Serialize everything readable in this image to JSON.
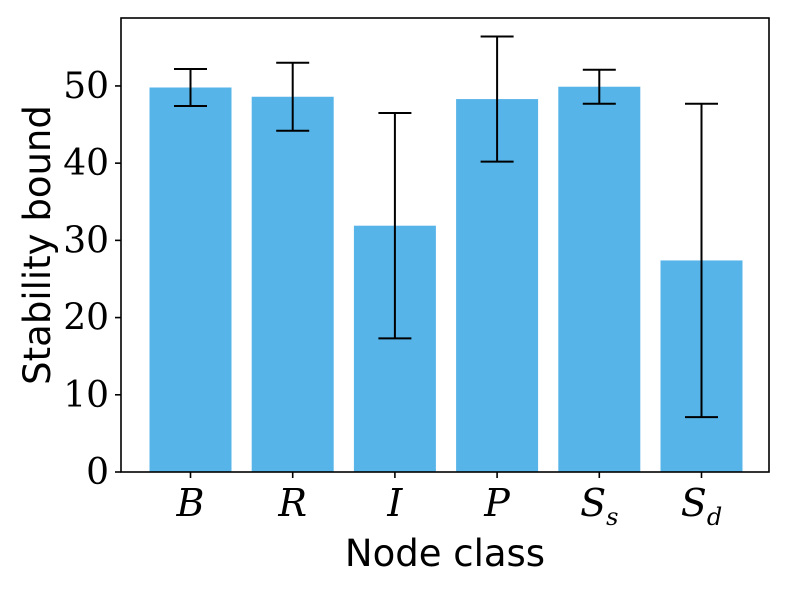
{
  "chart_data": {
    "type": "bar",
    "title": "",
    "xlabel": "Node class",
    "ylabel": "Stability bound",
    "categories": [
      {
        "base": "B",
        "sub": ""
      },
      {
        "base": "R",
        "sub": ""
      },
      {
        "base": "I",
        "sub": ""
      },
      {
        "base": "P",
        "sub": ""
      },
      {
        "base": "S",
        "sub": "s"
      },
      {
        "base": "S",
        "sub": "d"
      }
    ],
    "values": [
      49.8,
      48.6,
      31.9,
      48.3,
      49.9,
      27.4
    ],
    "error_low": [
      47.4,
      44.2,
      17.3,
      40.2,
      47.7,
      7.1
    ],
    "error_high": [
      52.2,
      53.0,
      46.5,
      56.4,
      52.1,
      47.7
    ],
    "ylim": [
      0,
      58.8
    ],
    "yticks": [
      0,
      10,
      20,
      30,
      40,
      50
    ],
    "grid": false,
    "legend": "none",
    "bar_color": "#56b4e9",
    "error_color": "#000000"
  }
}
